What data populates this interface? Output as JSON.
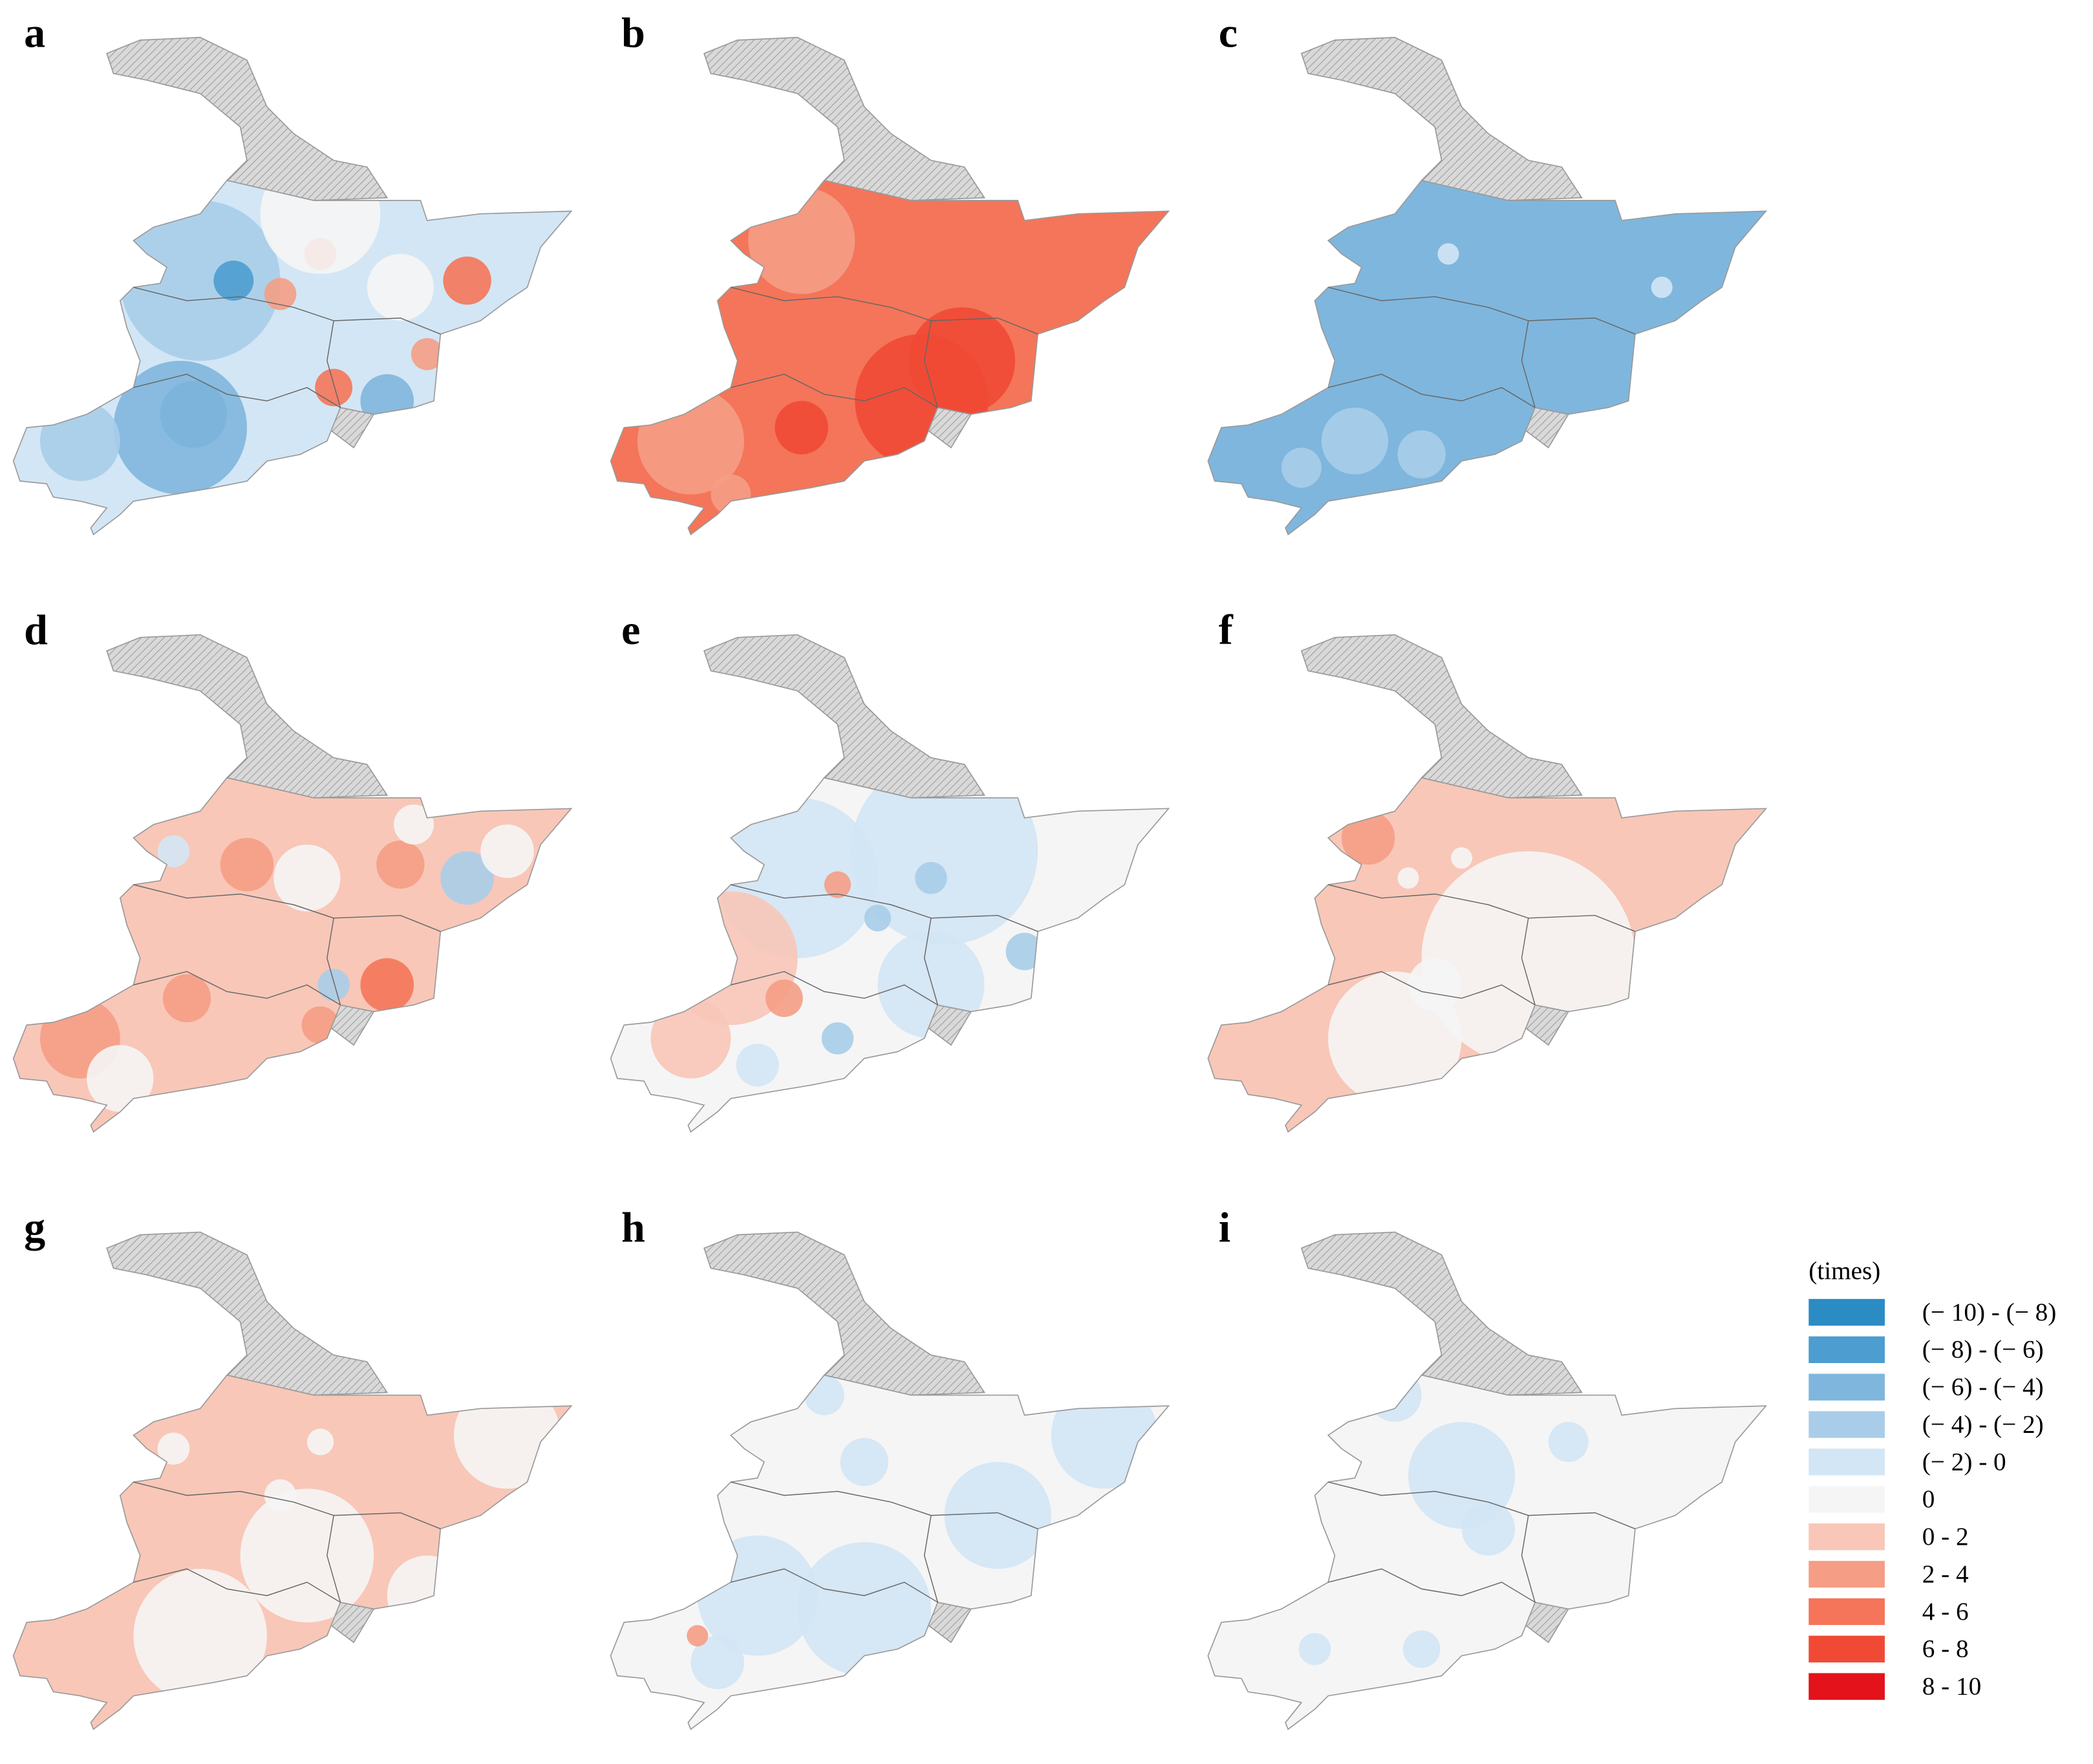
{
  "panels": [
    {
      "label": "a"
    },
    {
      "label": "b"
    },
    {
      "label": "c"
    },
    {
      "label": "d"
    },
    {
      "label": "e"
    },
    {
      "label": "f"
    },
    {
      "label": "g"
    },
    {
      "label": "h"
    },
    {
      "label": "i"
    }
  ],
  "legend": {
    "title": "(times)",
    "items": [
      {
        "label": "(− 10) - (− 8)",
        "color": "#2b8cc4"
      },
      {
        "label": "(− 8) - (− 6)",
        "color": "#4d9dd0"
      },
      {
        "label": "(− 6) - (− 4)",
        "color": "#7fb6dd"
      },
      {
        "label": "(− 4) - (− 2)",
        "color": "#a9cde9"
      },
      {
        "label": "(− 2) - 0",
        "color": "#d3e6f5"
      },
      {
        "label": "0",
        "color": "#f5f5f5"
      },
      {
        "label": "0 - 2",
        "color": "#f8c7b8"
      },
      {
        "label": "2 - 4",
        "color": "#f59d85"
      },
      {
        "label": "4 - 6",
        "color": "#f47559"
      },
      {
        "label": "6 - 8",
        "color": "#f04a35"
      },
      {
        "label": "8 - 10",
        "color": "#e3121b"
      }
    ]
  }
}
